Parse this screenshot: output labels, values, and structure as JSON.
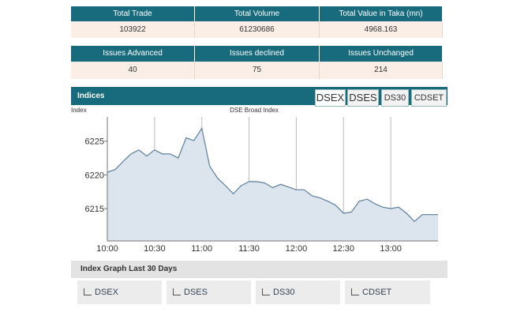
{
  "summary_table": {
    "headers": [
      "Total Trade",
      "Total Volume",
      "Total Value in Taka (mn)"
    ],
    "values": [
      103922,
      61230686,
      4968.163
    ]
  },
  "issues_table": {
    "headers": [
      "Issues Advanced",
      "Issues declined",
      "Issues Unchanged"
    ],
    "values": [
      40,
      75,
      214
    ]
  },
  "indices": {
    "title": "Indices",
    "tabs": [
      "DSEX",
      "DSES",
      "DS30",
      "CDSET"
    ],
    "chart": {
      "type": "line",
      "title": "DSE Broad Index",
      "y_label": "Index",
      "color": "#5d7f9c",
      "fill": "#dce5ee",
      "x": [
        "10:00",
        "10:05",
        "10:10",
        "10:15",
        "10:20",
        "10:25",
        "10:30",
        "10:35",
        "10:40",
        "10:45",
        "10:50",
        "10:55",
        "11:00",
        "11:05",
        "11:10",
        "11:15",
        "11:20",
        "11:25",
        "11:30",
        "11:35",
        "11:40",
        "11:45",
        "11:50",
        "11:55",
        "12:00",
        "12:05",
        "12:10",
        "12:15",
        "12:20",
        "12:25",
        "12:30",
        "12:35",
        "12:40",
        "12:45",
        "12:50",
        "12:55",
        "13:00",
        "13:05",
        "13:10",
        "13:15",
        "13:20",
        "13:25",
        "13:30"
      ],
      "values": [
        6220.4,
        6220.8,
        6222,
        6223.1,
        6223.7,
        6222.8,
        6223.7,
        6223.1,
        6223.1,
        6222.5,
        6225.5,
        6225.1,
        6226.9,
        6221.3,
        6219.5,
        6218.4,
        6217.2,
        6218.4,
        6219,
        6219,
        6218.8,
        6218.1,
        6218.6,
        6218.2,
        6217.8,
        6217.8,
        6216.9,
        6216.6,
        6216.1,
        6215.5,
        6214.3,
        6214.5,
        6216.1,
        6216.4,
        6215.7,
        6215.2,
        6215,
        6215.2,
        6214.3,
        6213.1,
        6214.1,
        6214.1,
        6214.1
      ],
      "xlim": [
        "10:00",
        "13:30"
      ],
      "xticks": [
        "10:00",
        "10:30",
        "11:00",
        "11:30",
        "12:00",
        "12:30",
        "13:00"
      ],
      "ylim": [
        6210.2,
        6228.6
      ],
      "yticks": [
        6215,
        6220,
        6225
      ],
      "grid": true
    }
  },
  "last_30_days": {
    "title": "Index Graph Last 30 Days",
    "buttons": [
      "DSEX",
      "DSES",
      "DS30",
      "CDSET"
    ]
  }
}
